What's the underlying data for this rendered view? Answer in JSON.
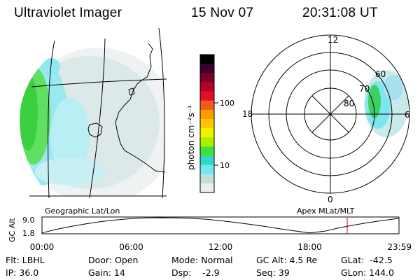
{
  "header": {
    "instrument": "Ultraviolet Imager",
    "date": "15 Nov 07",
    "time": "20:31:08 UT"
  },
  "colorbar": {
    "unit_label": "photon cm⁻²s⁻¹",
    "ticks": [
      "100",
      "10"
    ],
    "colors": [
      "#000000",
      "#3a0030",
      "#7a0028",
      "#b8002a",
      "#e0102a",
      "#f05a1a",
      "#ff9a00",
      "#ffc800",
      "#f0f000",
      "#a8f000",
      "#40e040",
      "#30d8c8",
      "#70e8f0",
      "#c0e0e0",
      "#eeeeee"
    ]
  },
  "polar_plot": {
    "mlt_labels": [
      "12",
      "18",
      "6",
      "0"
    ],
    "lat_labels": [
      "60",
      "70",
      "80"
    ]
  },
  "altitude_panel": {
    "left_title": "Geographic Lat/Lon",
    "right_title": "Apex MLat/MLT",
    "ylabel": "GC Alt",
    "y_ticks": [
      "9.0",
      "1.8"
    ],
    "x_ticks": [
      "00:00",
      "06:00",
      "12:00",
      "18:00",
      "23:59"
    ],
    "marker_color": "#d01010"
  },
  "chart_data": {
    "type": "line",
    "title": "",
    "xlabel": "",
    "ylabel": "GC Alt",
    "x_unit": "hour UT",
    "xlim": [
      0,
      24
    ],
    "ylim": [
      1.8,
      9.0
    ],
    "series": [
      {
        "x": [
          0,
          1,
          2,
          3,
          4,
          5,
          6,
          7,
          8,
          9,
          10,
          11,
          12,
          13,
          14,
          15,
          16,
          17,
          18,
          19,
          20,
          21,
          22,
          23,
          24
        ],
        "y": [
          1.9,
          3.6,
          5.0,
          6.2,
          7.2,
          8.0,
          8.6,
          8.9,
          9.0,
          8.95,
          8.7,
          8.3,
          7.6,
          6.8,
          5.9,
          4.9,
          3.8,
          2.8,
          1.9,
          2.7,
          4.3,
          5.6,
          6.8,
          7.8,
          8.7
        ]
      }
    ],
    "current_time_hour": 20.52
  },
  "info": {
    "filter": "Flt: LBHL",
    "ip": "IP: 36.0",
    "door": "Door: Open",
    "gain": "Gain: 14",
    "mode": "Mode: Normal",
    "dsp": "Dsp:    -2.9",
    "gc_alt": "GC Alt: 4.5 Re",
    "seq": "Seq: 39",
    "glat": "GLat:  -42.5",
    "glon": "GLon: 144.0"
  }
}
